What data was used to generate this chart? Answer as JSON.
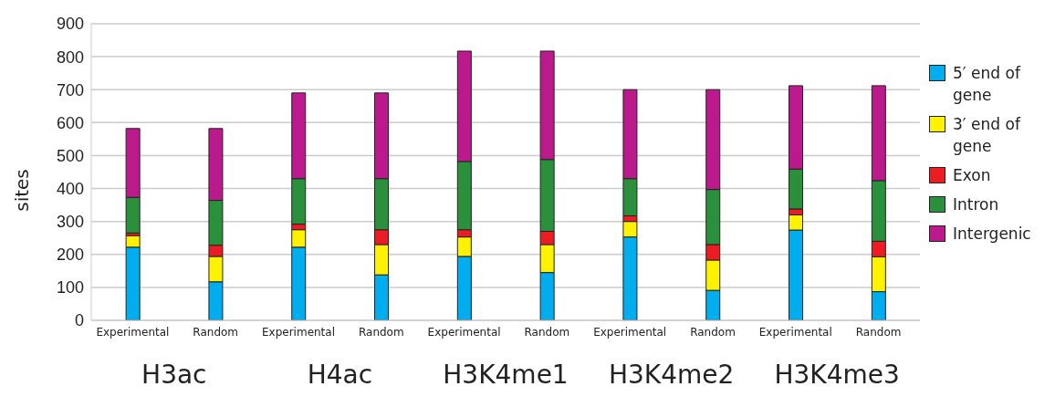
{
  "chart_data": {
    "type": "bar",
    "stacked": true,
    "ylabel": "sites",
    "categories": [
      "Experimental",
      "Random",
      "Experimental",
      "Random",
      "Experimental",
      "Random",
      "Experimental",
      "Random",
      "Experimental",
      "Random"
    ],
    "annotations": [
      "H3ac",
      "H4ac",
      "H3K4me1",
      "H3K4me2",
      "H3K4me3"
    ],
    "series": [
      {
        "name": "5′ end of gene",
        "color": "#00aeef",
        "values": [
          222,
          117,
          222,
          138,
          194,
          145,
          253,
          91,
          274,
          87
        ]
      },
      {
        "name": "3′ end of gene",
        "color": "#fff200",
        "values": [
          35,
          77,
          53,
          92,
          59,
          85,
          47,
          92,
          46,
          106
        ]
      },
      {
        "name": "Exon",
        "color": "#ed1c24",
        "values": [
          8,
          34,
          17,
          45,
          22,
          40,
          17,
          47,
          18,
          47
        ]
      },
      {
        "name": "Intron",
        "color": "#2a903b",
        "values": [
          108,
          136,
          138,
          155,
          207,
          218,
          113,
          167,
          121,
          184
        ]
      },
      {
        "name": "Intergenic",
        "color": "#bc1a8c",
        "values": [
          209,
          218,
          260,
          260,
          335,
          329,
          270,
          303,
          253,
          288
        ]
      }
    ],
    "ylim": [
      0,
      900
    ],
    "yticks": [
      0,
      100,
      200,
      300,
      400,
      500,
      600,
      700,
      800,
      900
    ],
    "grid": "y",
    "legend": "right"
  }
}
